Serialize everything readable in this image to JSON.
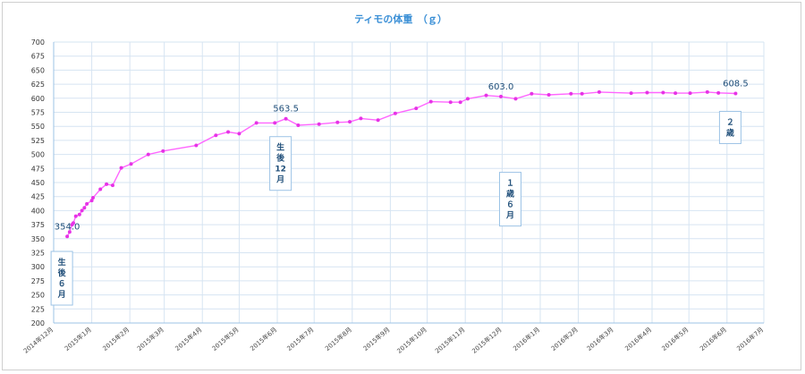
{
  "chart_data": {
    "type": "line",
    "title": "ティモの体重　（ｇ）",
    "xlabel": "",
    "ylabel": "",
    "ylim": [
      200,
      700
    ],
    "yticks": [
      200,
      225,
      250,
      275,
      300,
      325,
      350,
      375,
      400,
      425,
      450,
      475,
      500,
      525,
      550,
      575,
      600,
      625,
      650,
      675,
      700
    ],
    "xlim": [
      "2014-12-01",
      "2016-07-01"
    ],
    "xticks": [
      "2014年12月",
      "2015年1月",
      "2015年2月",
      "2015年3月",
      "2015年4月",
      "2015年5月",
      "2015年6月",
      "2015年7月",
      "2015年8月",
      "2015年9月",
      "2015年10月",
      "2015年11月",
      "2015年12月",
      "2016年1月",
      "2016年2月",
      "2016年3月",
      "2016年4月",
      "2016年5月",
      "2016年6月",
      "2016年7月"
    ],
    "grid": true,
    "legend": "none",
    "series_color": "#ff66ff",
    "series": [
      {
        "points": [
          [
            "2014-12-12",
            354
          ],
          [
            "2014-12-14",
            362
          ],
          [
            "2014-12-16",
            375
          ],
          [
            "2014-12-17",
            378
          ],
          [
            "2014-12-19",
            390
          ],
          [
            "2014-12-22",
            393
          ],
          [
            "2014-12-24",
            400
          ],
          [
            "2014-12-26",
            405
          ],
          [
            "2014-12-28",
            412
          ],
          [
            "2015-01-01",
            418
          ],
          [
            "2015-01-02",
            423
          ],
          [
            "2015-01-08",
            438
          ],
          [
            "2015-01-13",
            447
          ],
          [
            "2015-01-18",
            445
          ],
          [
            "2015-01-25",
            476
          ],
          [
            "2015-02-02",
            483
          ],
          [
            "2015-02-16",
            500
          ],
          [
            "2015-02-28",
            506
          ],
          [
            "2015-03-27",
            516
          ],
          [
            "2015-04-12",
            534
          ],
          [
            "2015-04-22",
            540
          ],
          [
            "2015-05-01",
            537
          ],
          [
            "2015-05-15",
            556
          ],
          [
            "2015-05-30",
            556
          ],
          [
            "2015-06-08",
            563.5
          ],
          [
            "2015-06-18",
            552
          ],
          [
            "2015-07-05",
            554
          ],
          [
            "2015-07-20",
            557
          ],
          [
            "2015-07-30",
            558
          ],
          [
            "2015-08-08",
            564
          ],
          [
            "2015-08-22",
            561
          ],
          [
            "2015-09-05",
            573
          ],
          [
            "2015-09-22",
            582
          ],
          [
            "2015-10-04",
            594
          ],
          [
            "2015-10-20",
            593
          ],
          [
            "2015-10-28",
            593
          ],
          [
            "2015-11-03",
            599
          ],
          [
            "2015-11-18",
            605
          ],
          [
            "2015-11-30",
            603
          ],
          [
            "2015-12-12",
            599
          ],
          [
            "2015-12-25",
            608
          ],
          [
            "2016-01-08",
            606
          ],
          [
            "2016-01-26",
            608
          ],
          [
            "2016-02-04",
            608
          ],
          [
            "2016-02-18",
            611
          ],
          [
            "2016-03-15",
            609
          ],
          [
            "2016-03-28",
            610
          ],
          [
            "2016-04-10",
            610
          ],
          [
            "2016-04-20",
            609
          ],
          [
            "2016-05-02",
            609
          ],
          [
            "2016-05-16",
            611
          ],
          [
            "2016-05-25",
            609.5
          ],
          [
            "2016-06-08",
            608.5
          ]
        ]
      }
    ],
    "data_labels": [
      {
        "date": "2014-12-12",
        "value": 354,
        "text": "354.0"
      },
      {
        "date": "2015-06-08",
        "value": 563.5,
        "text": "563.5"
      },
      {
        "date": "2015-11-30",
        "value": 603,
        "text": "603.0"
      },
      {
        "date": "2016-06-08",
        "value": 608.5,
        "text": "608.5"
      }
    ],
    "annotations": [
      {
        "lines": [
          "生",
          "後",
          "６",
          "月"
        ],
        "date": "2014-12-12"
      },
      {
        "lines": [
          "生",
          "後",
          "12",
          "月"
        ],
        "date": "2015-06-08"
      },
      {
        "lines": [
          "１",
          "歳",
          "６",
          "月"
        ],
        "date": "2015-12-12"
      },
      {
        "lines": [
          "２",
          "歳"
        ],
        "date": "2016-06-08"
      }
    ]
  }
}
